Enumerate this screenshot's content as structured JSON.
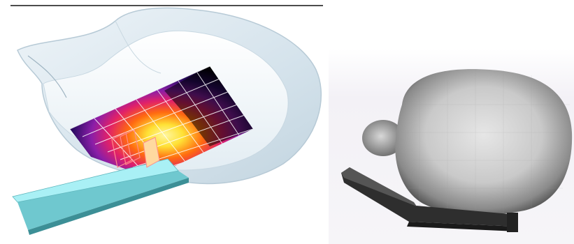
{
  "figure": {
    "left_panel": {
      "subject": "phantom-head-cutaway-with-sar-heatmap",
      "colors": {
        "shell": "#d9e6ef",
        "shell_edge": "#b9cbd8",
        "board": "#a9f0f5",
        "board_side": "#6fc8cf",
        "heat_low": "#000000",
        "heat_mid1": "#2a0a5e",
        "heat_mid2": "#b0268c",
        "heat_mid3": "#ff2a1a",
        "heat_high": "#ffef40",
        "grid": "#ffffff"
      }
    },
    "right_panel": {
      "subject": "grayscale-head-with-handset-model",
      "colors": {
        "head_light": "#dcdcdc",
        "head_dark": "#4a4a4a",
        "handset": "#2e2e2e",
        "background": "#f1f0f3"
      }
    }
  }
}
